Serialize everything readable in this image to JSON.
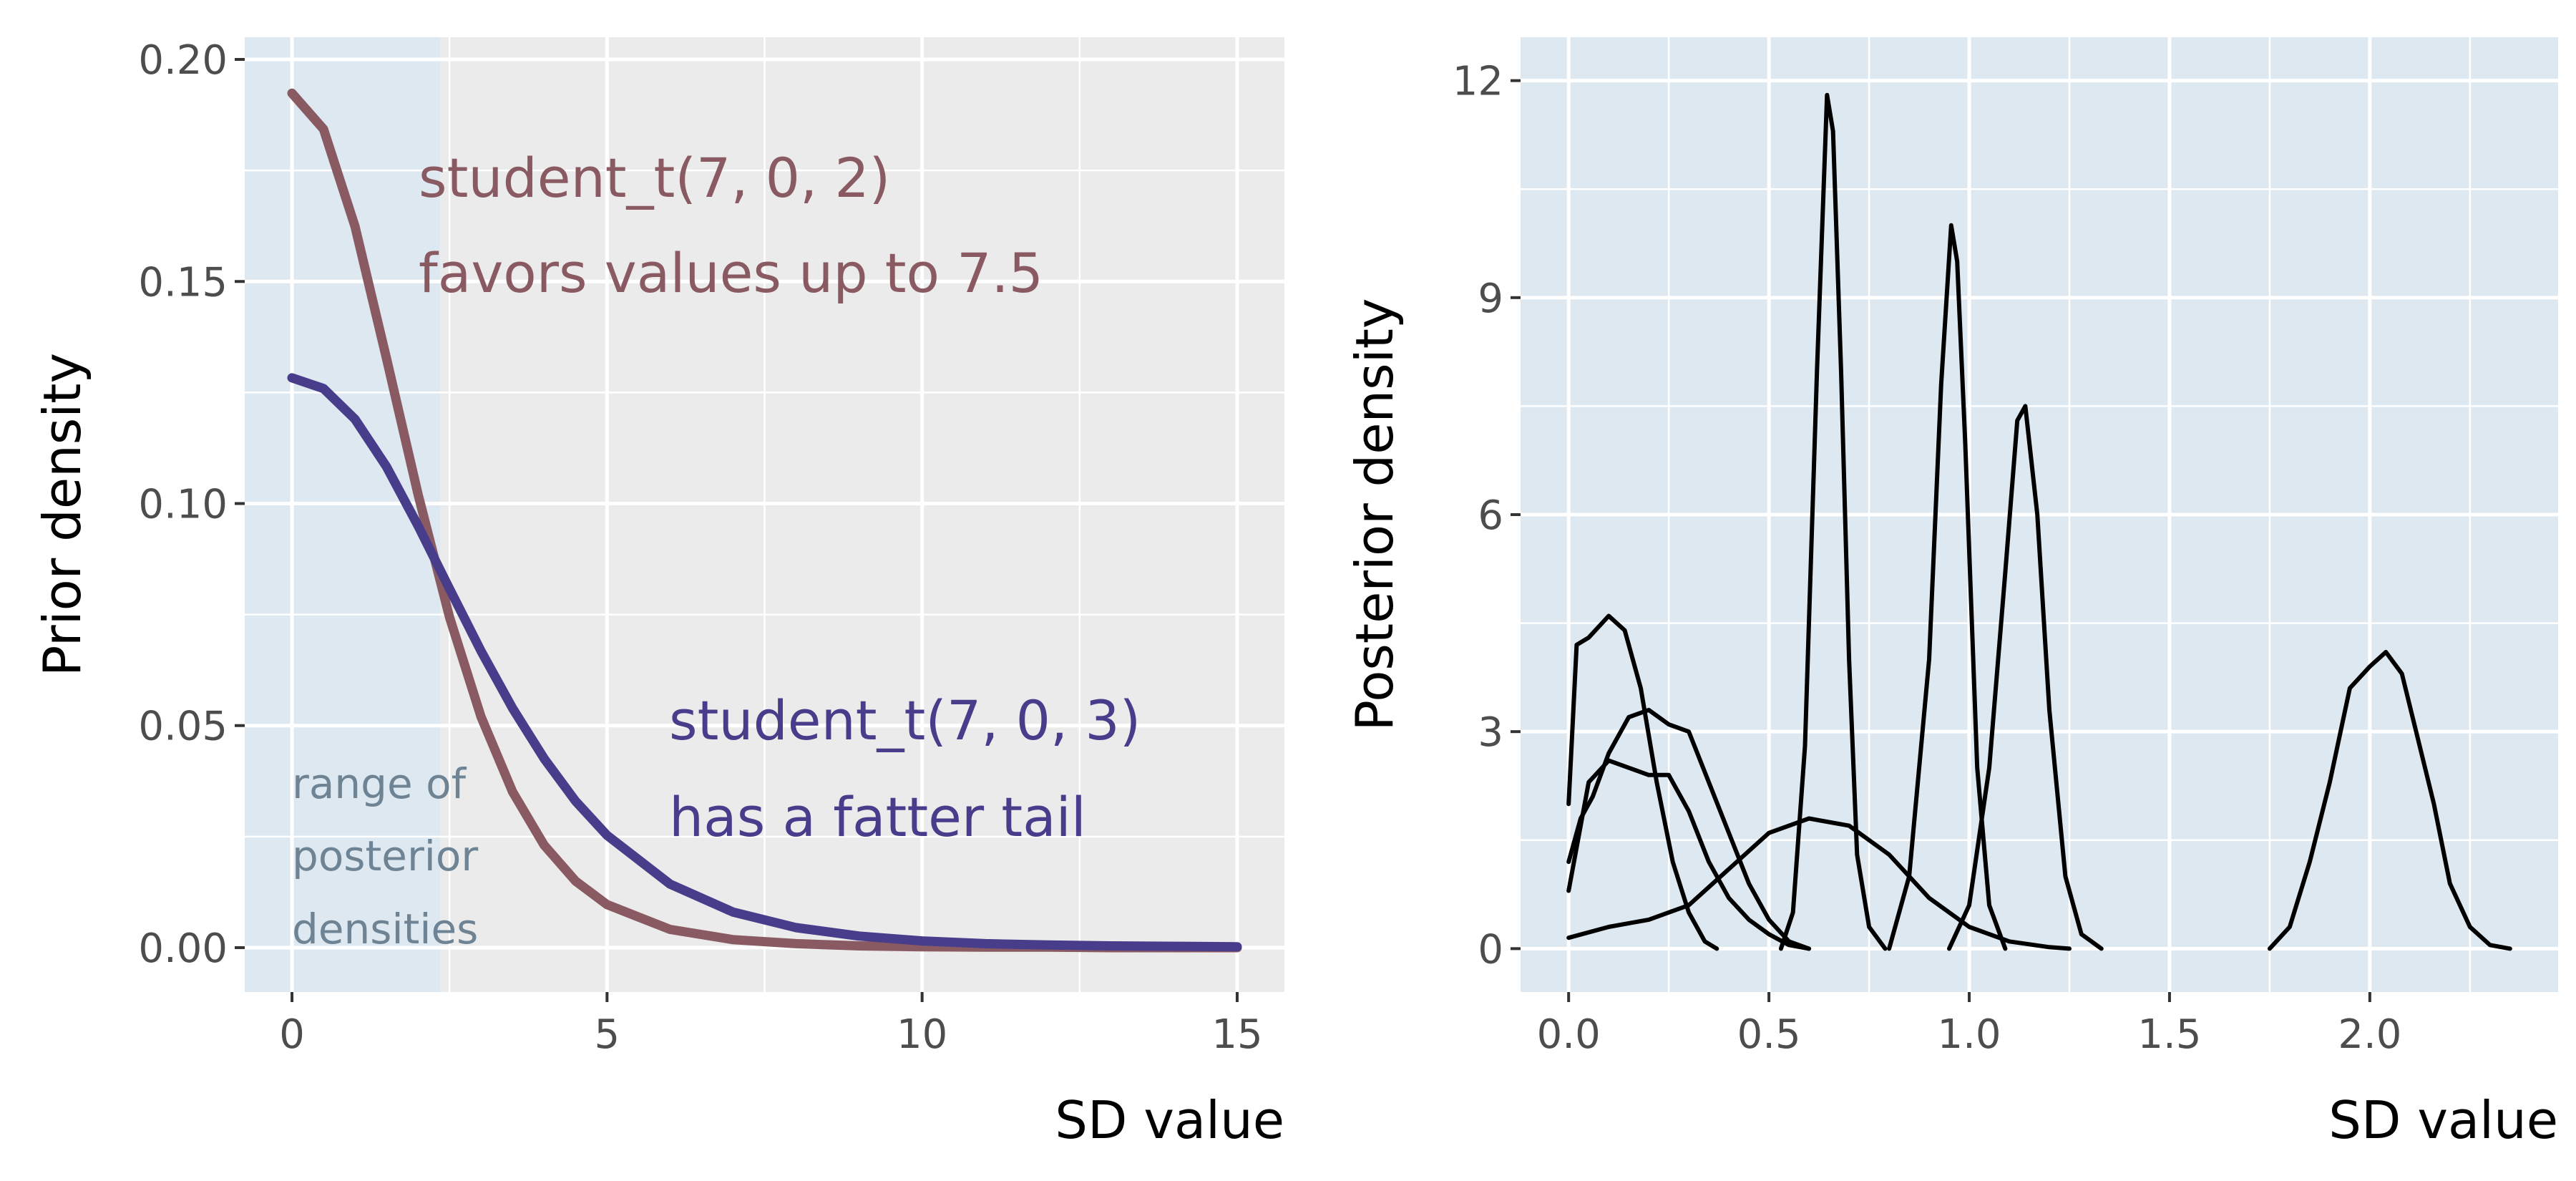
{
  "colors": {
    "panel_bg": "#ebebeb",
    "shade": "#dde8f0",
    "grid": "#ffffff",
    "prior2": "#8a5a63",
    "prior3": "#483d8b",
    "posterior": "#000000",
    "shade_text": "#6e8494",
    "tick": "#4d4d4d"
  },
  "chart_data": [
    {
      "type": "line",
      "xlabel": "SD value",
      "ylabel": "Prior density",
      "xlim": [
        -0.75,
        15.75
      ],
      "ylim": [
        -0.01,
        0.205
      ],
      "x_ticks": [
        0,
        5,
        10,
        15
      ],
      "x_tick_labels": [
        "0",
        "5",
        "10",
        "15"
      ],
      "y_ticks": [
        0,
        0.05,
        0.1,
        0.15,
        0.2
      ],
      "y_tick_labels": [
        "0.00",
        "0.05",
        "0.10",
        "0.15",
        "0.20"
      ],
      "grid": true,
      "shaded_range": {
        "x": [
          -0.75,
          2.35
        ],
        "label_lines": [
          "range of",
          "posterior",
          "densities"
        ]
      },
      "series": [
        {
          "key": "t2",
          "color_key": "prior2",
          "label_lines": [
            "student_t(7, 0, 2)",
            "favors values up to 7.5"
          ],
          "x": [
            0,
            0.5,
            1,
            1.5,
            2,
            2.5,
            3,
            3.5,
            4,
            4.5,
            5,
            6,
            7,
            8,
            9,
            10,
            11,
            12,
            13,
            14,
            15
          ],
          "y": [
            0.1924,
            0.1843,
            0.1624,
            0.1327,
            0.1021,
            0.0744,
            0.052,
            0.0351,
            0.0231,
            0.015,
            0.0097,
            0.0041,
            0.0018,
            0.0009,
            0.0004,
            0.0002,
            0.0001,
            0.0001,
            0.0,
            0.0,
            0.0
          ]
        },
        {
          "key": "t3",
          "color_key": "prior3",
          "label_lines": [
            "student_t(7, 0, 3)",
            "has a fatter tail"
          ],
          "x": [
            0,
            0.5,
            1,
            1.5,
            2,
            2.5,
            3,
            3.5,
            4,
            4.5,
            5,
            6,
            7,
            8,
            9,
            10,
            11,
            12,
            13,
            14,
            15
          ],
          "y": [
            0.1283,
            0.1259,
            0.119,
            0.1083,
            0.095,
            0.0808,
            0.0668,
            0.0539,
            0.0426,
            0.033,
            0.0253,
            0.0143,
            0.008,
            0.0045,
            0.0026,
            0.0015,
            0.0009,
            0.0006,
            0.0004,
            0.0003,
            0.0002
          ]
        }
      ]
    },
    {
      "type": "line",
      "xlabel": "SD value",
      "ylabel": "Posterior density",
      "xlim": [
        -0.12,
        2.47
      ],
      "ylim": [
        -0.6,
        12.6
      ],
      "x_ticks": [
        0,
        0.5,
        1.0,
        1.5,
        2.0
      ],
      "x_tick_labels": [
        "0.0",
        "0.5",
        "1.0",
        "1.5",
        "2.0"
      ],
      "y_ticks": [
        0,
        3,
        6,
        9,
        12
      ],
      "y_tick_labels": [
        "0",
        "3",
        "6",
        "9",
        "12"
      ],
      "grid": true,
      "series": [
        {
          "x": [
            0.0,
            0.02,
            0.05,
            0.1,
            0.14,
            0.18,
            0.22,
            0.26,
            0.3,
            0.34,
            0.37
          ],
          "y": [
            2.0,
            4.2,
            4.3,
            4.6,
            4.4,
            3.6,
            2.3,
            1.2,
            0.5,
            0.1,
            0.0
          ]
        },
        {
          "x": [
            0.0,
            0.03,
            0.06,
            0.1,
            0.15,
            0.2,
            0.25,
            0.3,
            0.35,
            0.4,
            0.45,
            0.5,
            0.55,
            0.6
          ],
          "y": [
            1.2,
            1.8,
            2.1,
            2.7,
            3.2,
            3.3,
            3.1,
            3.0,
            2.3,
            1.6,
            0.9,
            0.4,
            0.1,
            0.0
          ]
        },
        {
          "x": [
            0.0,
            0.05,
            0.1,
            0.15,
            0.2,
            0.25,
            0.3,
            0.35,
            0.4,
            0.45,
            0.5,
            0.55,
            0.6
          ],
          "y": [
            0.8,
            2.3,
            2.6,
            2.5,
            2.4,
            2.4,
            1.9,
            1.2,
            0.7,
            0.4,
            0.2,
            0.05,
            0.0
          ]
        },
        {
          "x": [
            0.0,
            0.1,
            0.2,
            0.3,
            0.4,
            0.5,
            0.6,
            0.7,
            0.8,
            0.9,
            1.0,
            1.1,
            1.2,
            1.25
          ],
          "y": [
            0.15,
            0.3,
            0.4,
            0.6,
            1.1,
            1.6,
            1.8,
            1.7,
            1.3,
            0.7,
            0.3,
            0.1,
            0.02,
            0.0
          ]
        },
        {
          "x": [
            0.53,
            0.56,
            0.59,
            0.62,
            0.645,
            0.66,
            0.68,
            0.7,
            0.72,
            0.75,
            0.79
          ],
          "y": [
            0.0,
            0.5,
            2.8,
            8.0,
            11.8,
            11.3,
            8.0,
            4.0,
            1.3,
            0.3,
            0.0
          ]
        },
        {
          "x": [
            0.8,
            0.85,
            0.9,
            0.93,
            0.955,
            0.97,
            0.99,
            1.02,
            1.05,
            1.09
          ],
          "y": [
            0.0,
            1.0,
            4.0,
            7.8,
            10.0,
            9.5,
            7.0,
            2.5,
            0.6,
            0.0
          ]
        },
        {
          "x": [
            0.95,
            1.0,
            1.05,
            1.09,
            1.12,
            1.14,
            1.17,
            1.2,
            1.24,
            1.28,
            1.33
          ],
          "y": [
            0.0,
            0.6,
            2.5,
            5.2,
            7.3,
            7.5,
            6.0,
            3.3,
            1.0,
            0.2,
            0.0
          ]
        },
        {
          "x": [
            1.75,
            1.8,
            1.85,
            1.9,
            1.95,
            2.0,
            2.04,
            2.08,
            2.12,
            2.16,
            2.2,
            2.25,
            2.3,
            2.35
          ],
          "y": [
            0.0,
            0.3,
            1.2,
            2.3,
            3.6,
            3.9,
            4.1,
            3.8,
            2.9,
            2.0,
            0.9,
            0.3,
            0.05,
            0.0
          ]
        }
      ]
    }
  ]
}
